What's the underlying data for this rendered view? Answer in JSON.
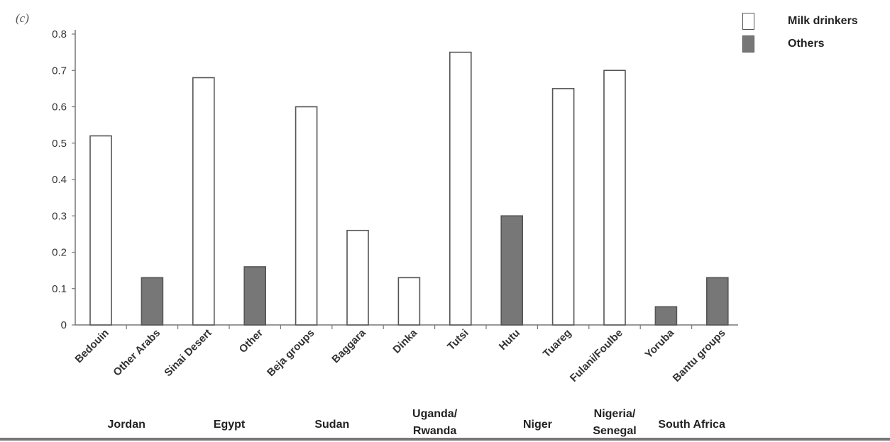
{
  "panel_label": "(c)",
  "colors": {
    "milk": "#ffffff",
    "others": "#777777",
    "outline": "#555555"
  },
  "legend": [
    {
      "label": "Milk drinkers",
      "series": "milk"
    },
    {
      "label": "Others",
      "series": "others"
    }
  ],
  "chart_data": {
    "type": "bar",
    "title": "",
    "xlabel": "",
    "ylabel": "",
    "ylim": [
      0,
      0.8
    ],
    "yticks": [
      "0",
      "0.1",
      "0.2",
      "0.3",
      "0.4",
      "0.5",
      "0.6",
      "0.7",
      "0.8"
    ],
    "series": [
      {
        "name": "Milk drinkers",
        "key": "milk"
      },
      {
        "name": "Others",
        "key": "others"
      }
    ],
    "bars": [
      {
        "category": "Bedouin",
        "series": "milk",
        "value": 0.52
      },
      {
        "category": "Other Arabs",
        "series": "others",
        "value": 0.13
      },
      {
        "category": "Sinai Desert",
        "series": "milk",
        "value": 0.68
      },
      {
        "category": "Other",
        "series": "others",
        "value": 0.16
      },
      {
        "category": "Beja groups",
        "series": "milk",
        "value": 0.6
      },
      {
        "category": "Baggara",
        "series": "milk",
        "value": 0.26
      },
      {
        "category": "Dinka",
        "series": "milk",
        "value": 0.13
      },
      {
        "category": "Tutsi",
        "series": "milk",
        "value": 0.75
      },
      {
        "category": "Hutu",
        "series": "others",
        "value": 0.3
      },
      {
        "category": "Tuareg",
        "series": "milk",
        "value": 0.65
      },
      {
        "category": "Fulani/Foulbe",
        "series": "milk",
        "value": 0.7
      },
      {
        "category": "Yoruba",
        "series": "others",
        "value": 0.05
      },
      {
        "category": "Bantu groups",
        "series": "others",
        "value": 0.13
      }
    ],
    "groups": [
      {
        "label": "Jordan",
        "from": 0,
        "to": 1
      },
      {
        "label": "Egypt",
        "from": 2,
        "to": 3
      },
      {
        "label": "Sudan",
        "from": 4,
        "to": 5
      },
      {
        "label": "Uganda/ Rwanda",
        "from": 6,
        "to": 7
      },
      {
        "label": "Niger",
        "from": 8,
        "to": 9
      },
      {
        "label": "Nigeria/ Senegal",
        "from": 10,
        "to": 10
      },
      {
        "label": "South Africa",
        "from": 11,
        "to": 12
      }
    ],
    "grid": false,
    "legend_position": "top-right"
  }
}
